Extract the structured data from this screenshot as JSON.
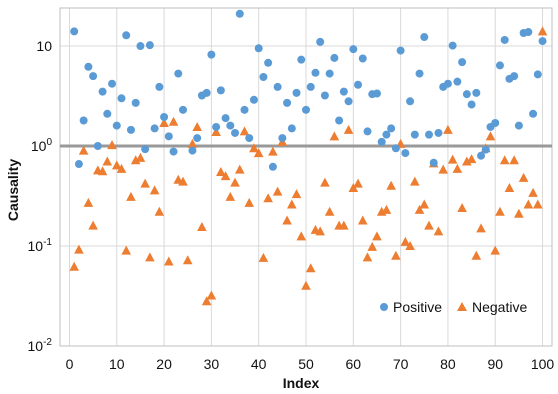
{
  "chart_data": {
    "type": "scatter",
    "title": "",
    "xlabel": "Index",
    "ylabel": "Causality",
    "xlim": [
      -2,
      102
    ],
    "ylim": [
      0.01,
      24
    ],
    "y_scale": "log",
    "grid": true,
    "legend_position": "bottom-right",
    "x_ticks": [
      0,
      10,
      20,
      30,
      40,
      50,
      60,
      70,
      80,
      90,
      100
    ],
    "x_tick_labels": [
      "0",
      "10",
      "20",
      "30",
      "40",
      "50",
      "60",
      "70",
      "80",
      "90",
      "100"
    ],
    "y_ticks": [
      0.01,
      0.1,
      1,
      10
    ],
    "y_tick_labels": [
      {
        "base": "10",
        "exp": "-2"
      },
      {
        "base": "10",
        "exp": "-1"
      },
      {
        "base": "10",
        "exp": "0"
      },
      {
        "base": "10",
        "exp": ""
      }
    ],
    "reference_line": {
      "y": 1,
      "color": "#999999"
    },
    "series": [
      {
        "name": "Positive",
        "marker": "circle",
        "color": "#5b9bd5",
        "points": [
          [
            1,
            14
          ],
          [
            2,
            0.66
          ],
          [
            3,
            1.8
          ],
          [
            4,
            6.2
          ],
          [
            5,
            5.0
          ],
          [
            6,
            1.0
          ],
          [
            7,
            3.5
          ],
          [
            8,
            2.1
          ],
          [
            9,
            4.2
          ],
          [
            10,
            1.6
          ],
          [
            11,
            3.0
          ],
          [
            12,
            12.8
          ],
          [
            13,
            1.45
          ],
          [
            14,
            2.7
          ],
          [
            15,
            10.0
          ],
          [
            16,
            0.93
          ],
          [
            17,
            10.2
          ],
          [
            18,
            1.5
          ],
          [
            19,
            3.9
          ],
          [
            20,
            1.95
          ],
          [
            21,
            1.25
          ],
          [
            22,
            0.88
          ],
          [
            23,
            5.3
          ],
          [
            24,
            2.3
          ],
          [
            26,
            0.9
          ],
          [
            27,
            1.2
          ],
          [
            28,
            3.2
          ],
          [
            29,
            3.4
          ],
          [
            30,
            8.2
          ],
          [
            31,
            1.55
          ],
          [
            32,
            3.6
          ],
          [
            33,
            1.9
          ],
          [
            34,
            1.6
          ],
          [
            35,
            1.35
          ],
          [
            36,
            21
          ],
          [
            37,
            2.3
          ],
          [
            38,
            1.2
          ],
          [
            39,
            2.9
          ],
          [
            40,
            9.5
          ],
          [
            41,
            4.9
          ],
          [
            42,
            6.8
          ],
          [
            43,
            0.62
          ],
          [
            44,
            3.9
          ],
          [
            45,
            1.2
          ],
          [
            46,
            2.7
          ],
          [
            47,
            1.5
          ],
          [
            48,
            3.4
          ],
          [
            49,
            7.3
          ],
          [
            50,
            2.3
          ],
          [
            51,
            3.9
          ],
          [
            52,
            5.4
          ],
          [
            53,
            11.0
          ],
          [
            54,
            3.2
          ],
          [
            55,
            5.3
          ],
          [
            56,
            7.6
          ],
          [
            57,
            1.8
          ],
          [
            58,
            3.5
          ],
          [
            59,
            2.8
          ],
          [
            60,
            9.3
          ],
          [
            61,
            4.1
          ],
          [
            62,
            7.5
          ],
          [
            63,
            1.4
          ],
          [
            64,
            3.3
          ],
          [
            65,
            3.35
          ],
          [
            66,
            1.1
          ],
          [
            67,
            1.3
          ],
          [
            68,
            1.5
          ],
          [
            69,
            0.95
          ],
          [
            70,
            9.0
          ],
          [
            71,
            0.85
          ],
          [
            72,
            2.8
          ],
          [
            73,
            1.3
          ],
          [
            74,
            5.3
          ],
          [
            75,
            12.3
          ],
          [
            76,
            1.3
          ],
          [
            77,
            0.68
          ],
          [
            78,
            1.35
          ],
          [
            79,
            3.9
          ],
          [
            80,
            4.2
          ],
          [
            81,
            10.1
          ],
          [
            82,
            4.4
          ],
          [
            83,
            6.9
          ],
          [
            84,
            3.3
          ],
          [
            85,
            2.6
          ],
          [
            86,
            3.4
          ],
          [
            87,
            0.8
          ],
          [
            88,
            0.92
          ],
          [
            89,
            1.55
          ],
          [
            90,
            1.7
          ],
          [
            91,
            6.4
          ],
          [
            92,
            11.5
          ],
          [
            93,
            4.7
          ],
          [
            94,
            5.0
          ],
          [
            95,
            1.6
          ],
          [
            96,
            13.5
          ],
          [
            97,
            13.8
          ],
          [
            98,
            2.1
          ],
          [
            99,
            5.2
          ],
          [
            100,
            11.2
          ]
        ]
      },
      {
        "name": "Negative",
        "marker": "triangle",
        "color": "#ed7d31",
        "points": [
          [
            1,
            0.062
          ],
          [
            2,
            0.092
          ],
          [
            3,
            0.9
          ],
          [
            4,
            0.27
          ],
          [
            5,
            0.16
          ],
          [
            6,
            0.57
          ],
          [
            7,
            0.56
          ],
          [
            8,
            0.7
          ],
          [
            9,
            1.02
          ],
          [
            10,
            0.64
          ],
          [
            11,
            0.59
          ],
          [
            12,
            0.09
          ],
          [
            13,
            0.31
          ],
          [
            14,
            0.72
          ],
          [
            15,
            0.76
          ],
          [
            16,
            0.42
          ],
          [
            17,
            0.077
          ],
          [
            18,
            0.36
          ],
          [
            19,
            0.22
          ],
          [
            20,
            1.7
          ],
          [
            21,
            0.07
          ],
          [
            22,
            1.75
          ],
          [
            23,
            0.46
          ],
          [
            24,
            0.44
          ],
          [
            25,
            0.072
          ],
          [
            26,
            1.05
          ],
          [
            27,
            1.55
          ],
          [
            28,
            0.155
          ],
          [
            29,
            0.028
          ],
          [
            30,
            0.032
          ],
          [
            31,
            1.38
          ],
          [
            32,
            0.55
          ],
          [
            33,
            0.5
          ],
          [
            34,
            0.31
          ],
          [
            35,
            0.43
          ],
          [
            36,
            0.58
          ],
          [
            37,
            1.4
          ],
          [
            38,
            0.27
          ],
          [
            39,
            0.95
          ],
          [
            40,
            0.85
          ],
          [
            41,
            0.076
          ],
          [
            42,
            0.3
          ],
          [
            43,
            0.88
          ],
          [
            44,
            0.35
          ],
          [
            45,
            1.1
          ],
          [
            46,
            0.18
          ],
          [
            47,
            0.26
          ],
          [
            48,
            0.33
          ],
          [
            49,
            0.125
          ],
          [
            50,
            0.04
          ],
          [
            51,
            0.06
          ],
          [
            52,
            0.145
          ],
          [
            53,
            0.14
          ],
          [
            54,
            0.43
          ],
          [
            55,
            0.22
          ],
          [
            56,
            1.25
          ],
          [
            57,
            0.16
          ],
          [
            58,
            0.16
          ],
          [
            59,
            1.45
          ],
          [
            60,
            0.38
          ],
          [
            61,
            0.42
          ],
          [
            62,
            0.18
          ],
          [
            63,
            0.077
          ],
          [
            64,
            0.098
          ],
          [
            65,
            0.125
          ],
          [
            66,
            0.22
          ],
          [
            67,
            0.23
          ],
          [
            68,
            0.4
          ],
          [
            69,
            0.08
          ],
          [
            70,
            1.05
          ],
          [
            71,
            0.11
          ],
          [
            72,
            0.1
          ],
          [
            73,
            0.44
          ],
          [
            74,
            0.23
          ],
          [
            75,
            0.26
          ],
          [
            76,
            0.16
          ],
          [
            77,
            0.67
          ],
          [
            78,
            0.14
          ],
          [
            79,
            0.58
          ],
          [
            80,
            1.45
          ],
          [
            81,
            0.73
          ],
          [
            82,
            0.59
          ],
          [
            83,
            0.24
          ],
          [
            84,
            0.7
          ],
          [
            85,
            0.74
          ],
          [
            86,
            0.08
          ],
          [
            87,
            0.15
          ],
          [
            88,
            0.95
          ],
          [
            89,
            1.25
          ],
          [
            90,
            0.09
          ],
          [
            91,
            0.22
          ],
          [
            92,
            0.72
          ],
          [
            93,
            0.38
          ],
          [
            94,
            0.72
          ],
          [
            95,
            0.21
          ],
          [
            96,
            0.48
          ],
          [
            97,
            0.26
          ],
          [
            98,
            0.34
          ],
          [
            99,
            0.26
          ],
          [
            100,
            14
          ]
        ]
      }
    ]
  }
}
